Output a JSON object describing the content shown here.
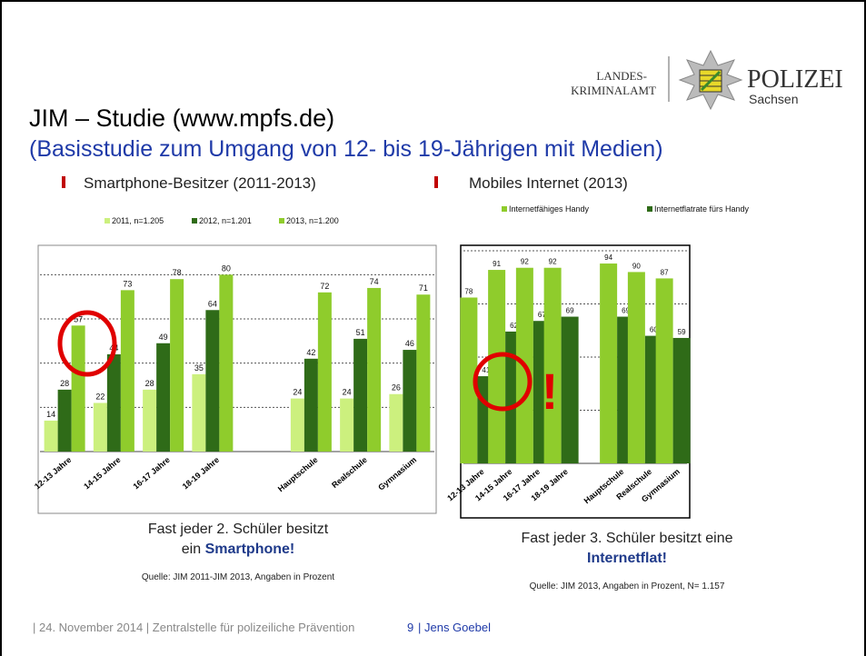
{
  "header": {
    "office_line1": "LANDES-",
    "office_line2": "KRIMINALAMT",
    "brand": "POLIZEI",
    "region": "Sachsen"
  },
  "title": "JIM – Studie (www.mpfs.de)",
  "subtitle": "(Basisstudie zum Umgang von 12- bis 19-Jährigen mit Medien)",
  "bullets": [
    "Smartphone-Besitzer (2011-2013)",
    "Mobiles Internet (2013)"
  ],
  "captions": [
    {
      "line1": "Fast jeder 2. Schüler besitzt",
      "line2_prefix": "ein ",
      "line2_bold": "Smartphone!",
      "source": "Quelle: JIM 2011-JIM 2013, Angaben in Prozent"
    },
    {
      "line1": "Fast jeder 3. Schüler besitzt eine",
      "line2_prefix": "",
      "line2_bold": "Internetflat!",
      "source": "Quelle: JIM 2013, Angaben in Prozent, N= 1.157"
    }
  ],
  "footer": {
    "left": "| 24. November 2014  |  Zentralstelle für polizeiliche Prävention",
    "page": "9",
    "author": "| Jens Goebel"
  },
  "chart_data": [
    {
      "type": "bar",
      "categories": [
        "12-13 Jahre",
        "14-15 Jahre",
        "16-17 Jahre",
        "18-19 Jahre",
        null,
        "Hauptschule",
        "Realschule",
        "Gymnasium"
      ],
      "series": [
        {
          "name": "2011, n=1.205",
          "color": "#ccf07e",
          "values": [
            14,
            22,
            28,
            35,
            null,
            24,
            24,
            26
          ]
        },
        {
          "name": "2012, n=1.201",
          "color": "#2f6b18",
          "values": [
            28,
            44,
            49,
            64,
            null,
            42,
            51,
            46
          ]
        },
        {
          "name": "2013, n=1.200",
          "color": "#8fcc2c",
          "values": [
            57,
            73,
            78,
            80,
            null,
            72,
            74,
            71
          ]
        }
      ],
      "ylim": [
        0,
        90
      ],
      "gridlines": [
        20,
        40,
        60,
        80
      ],
      "legend": "top"
    },
    {
      "type": "bar",
      "categories": [
        "12-13 Jahre",
        "14-15 Jahre",
        "16-17 Jahre",
        "18-19 Jahre",
        null,
        "Hauptschule",
        "Realschule",
        "Gymnasium"
      ],
      "series": [
        {
          "name": "Internetfähiges Handy",
          "color": "#8fcc2c",
          "values": [
            78,
            91,
            92,
            92,
            null,
            94,
            90,
            87
          ]
        },
        {
          "name": "Internetflatrate fürs Handy",
          "color": "#2f6b18",
          "values": [
            41,
            62,
            67,
            69,
            null,
            69,
            60,
            59
          ]
        }
      ],
      "ylim": [
        0,
        100
      ],
      "gridlines": [
        25,
        50,
        75,
        100
      ],
      "legend": "top",
      "annotation": "!"
    }
  ]
}
